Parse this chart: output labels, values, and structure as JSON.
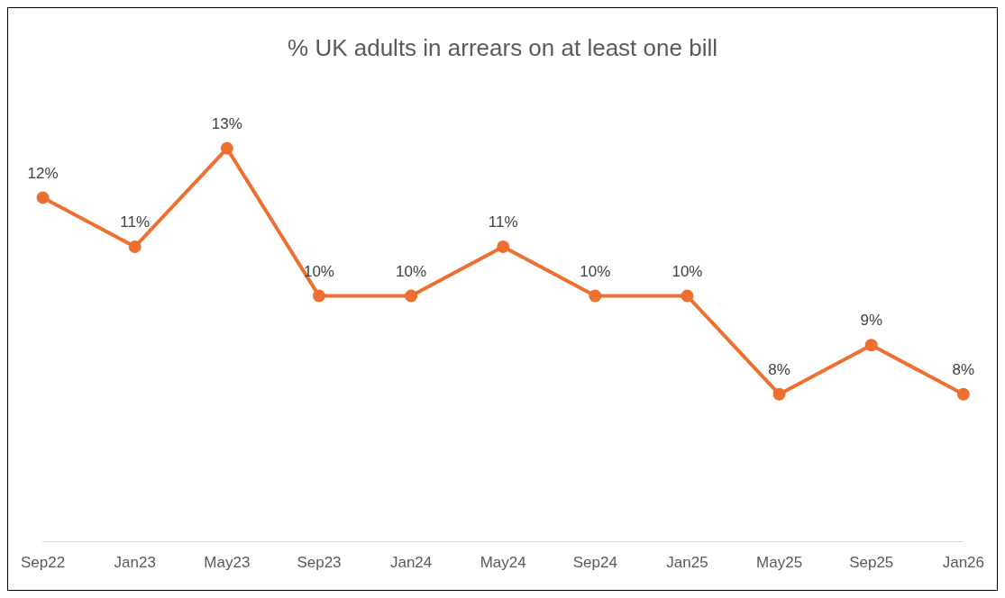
{
  "chart_data": {
    "type": "line",
    "title": "% UK adults in arrears on at least one bill",
    "categories": [
      "Sep22",
      "Jan23",
      "May23",
      "Sep23",
      "Jan24",
      "May24",
      "Sep24",
      "Jan25",
      "May25",
      "Sep25",
      "Jan26"
    ],
    "series": [
      {
        "color": "#ed7030",
        "values": [
          12,
          11,
          13,
          10,
          10,
          11,
          10,
          10,
          8,
          9,
          8
        ],
        "value_labels": [
          "12%",
          "11%",
          "13%",
          "10%",
          "10%",
          "11%",
          "10%",
          "10%",
          "8%",
          "9%",
          "8%"
        ]
      }
    ],
    "grid": false,
    "legend": false,
    "marker": "circle",
    "line_style": "solid",
    "tick_labels": "x"
  }
}
